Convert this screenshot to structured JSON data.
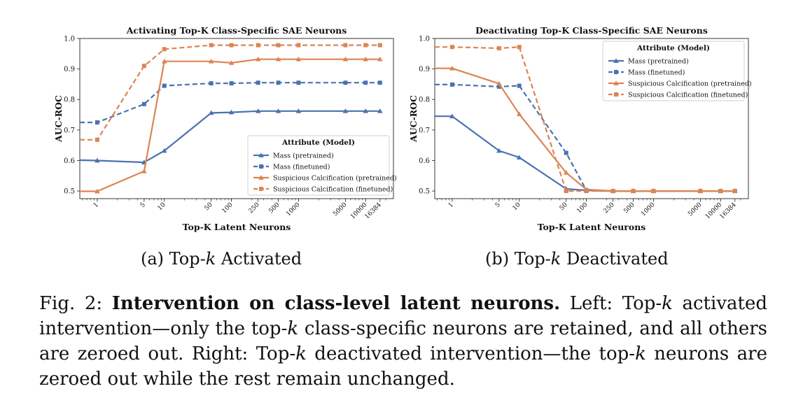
{
  "colors": {
    "mass": "#4a72b0",
    "calc": "#dd8452"
  },
  "legend": {
    "title": "Attribute (Model)",
    "entries": [
      {
        "label": "Mass (pretrained)",
        "color": "#4a72b0",
        "dash": false,
        "marker": "triangle"
      },
      {
        "label": "Mass (finetuned)",
        "color": "#4a72b0",
        "dash": true,
        "marker": "square"
      },
      {
        "label": "Suspicious Calcification (pretrained)",
        "color": "#dd8452",
        "dash": false,
        "marker": "triangle"
      },
      {
        "label": "Suspicious Calcification (finetuned)",
        "color": "#dd8452",
        "dash": true,
        "marker": "square"
      }
    ]
  },
  "chart_data": [
    {
      "type": "line",
      "title": "Activating Top-K Class-Specific SAE Neurons",
      "xlabel": "Top-K Latent Neurons",
      "ylabel": "AUC-ROC",
      "x_scale": "log",
      "xlim": [
        0.55,
        26000
      ],
      "ylim": [
        0.475,
        1.0
      ],
      "x": [
        1,
        5,
        10,
        50,
        100,
        250,
        500,
        1000,
        5000,
        10000,
        16384
      ],
      "x_tick_labels": [
        "1",
        "5",
        "10",
        "50",
        "100",
        "250",
        "500",
        "1000",
        "5000",
        "10000",
        "16384"
      ],
      "y_ticks": [
        0.5,
        0.6,
        0.7,
        0.8,
        0.9,
        1.0
      ],
      "y_tick_labels": [
        "0.5",
        "0.6",
        "0.7",
        "0.8",
        "0.9",
        "1.0"
      ],
      "legend_position": "lower right",
      "grid": false,
      "series": [
        {
          "name": "Mass (pretrained)",
          "points": [
            [
              0.55,
              0.601
            ],
            [
              1,
              0.6
            ],
            [
              5,
              0.594
            ],
            [
              10,
              0.632
            ],
            [
              50,
              0.756
            ],
            [
              100,
              0.758
            ],
            [
              250,
              0.762
            ],
            [
              500,
              0.762
            ],
            [
              1000,
              0.762
            ],
            [
              5000,
              0.762
            ],
            [
              10000,
              0.762
            ],
            [
              16384,
              0.762
            ]
          ]
        },
        {
          "name": "Mass (finetuned)",
          "points": [
            [
              0.55,
              0.725
            ],
            [
              1,
              0.725
            ],
            [
              5,
              0.785
            ],
            [
              10,
              0.845
            ],
            [
              50,
              0.853
            ],
            [
              100,
              0.853
            ],
            [
              250,
              0.855
            ],
            [
              500,
              0.855
            ],
            [
              1000,
              0.855
            ],
            [
              5000,
              0.855
            ],
            [
              10000,
              0.855
            ],
            [
              16384,
              0.855
            ]
          ]
        },
        {
          "name": "Suspicious Calcification (pretrained)",
          "points": [
            [
              0.55,
              0.499
            ],
            [
              1,
              0.499
            ],
            [
              5,
              0.565
            ],
            [
              10,
              0.925
            ],
            [
              50,
              0.925
            ],
            [
              100,
              0.92
            ],
            [
              250,
              0.932
            ],
            [
              500,
              0.932
            ],
            [
              1000,
              0.932
            ],
            [
              5000,
              0.932
            ],
            [
              10000,
              0.932
            ],
            [
              16384,
              0.932
            ]
          ]
        },
        {
          "name": "Suspicious Calcification (finetuned)",
          "points": [
            [
              0.55,
              0.668
            ],
            [
              1,
              0.668
            ],
            [
              5,
              0.91
            ],
            [
              10,
              0.965
            ],
            [
              50,
              0.978
            ],
            [
              100,
              0.978
            ],
            [
              250,
              0.978
            ],
            [
              500,
              0.978
            ],
            [
              1000,
              0.978
            ],
            [
              5000,
              0.978
            ],
            [
              10000,
              0.978
            ],
            [
              16384,
              0.978
            ]
          ]
        }
      ]
    },
    {
      "type": "line",
      "title": "Deactivating Top-K Class-Specific SAE Neurons",
      "xlabel": "Top-K Latent Neurons",
      "ylabel": "AUC-ROC",
      "x_scale": "log",
      "xlim": [
        0.55,
        26000
      ],
      "ylim": [
        0.475,
        1.0
      ],
      "x": [
        1,
        5,
        10,
        50,
        100,
        250,
        500,
        1000,
        5000,
        10000,
        16384
      ],
      "x_tick_labels": [
        "1",
        "5",
        "10",
        "50",
        "100",
        "250",
        "500",
        "1000",
        "5000",
        "10000",
        "16384"
      ],
      "y_ticks": [
        0.5,
        0.6,
        0.7,
        0.8,
        0.9,
        1.0
      ],
      "y_tick_labels": [
        "0.5",
        "0.6",
        "0.7",
        "0.8",
        "0.9",
        "1.0"
      ],
      "legend_position": "upper right",
      "grid": false,
      "series": [
        {
          "name": "Mass (pretrained)",
          "points": [
            [
              0.55,
              0.745
            ],
            [
              1,
              0.745
            ],
            [
              5,
              0.632
            ],
            [
              10,
              0.61
            ],
            [
              50,
              0.507
            ],
            [
              100,
              0.502
            ],
            [
              250,
              0.5
            ],
            [
              500,
              0.5
            ],
            [
              1000,
              0.5
            ],
            [
              5000,
              0.5
            ],
            [
              10000,
              0.5
            ],
            [
              16384,
              0.5
            ]
          ]
        },
        {
          "name": "Mass (finetuned)",
          "points": [
            [
              0.55,
              0.849
            ],
            [
              1,
              0.849
            ],
            [
              5,
              0.842
            ],
            [
              10,
              0.845
            ],
            [
              50,
              0.625
            ],
            [
              100,
              0.502
            ],
            [
              250,
              0.5
            ],
            [
              500,
              0.5
            ],
            [
              1000,
              0.5
            ],
            [
              5000,
              0.5
            ],
            [
              10000,
              0.5
            ],
            [
              16384,
              0.5
            ]
          ]
        },
        {
          "name": "Suspicious Calcification (pretrained)",
          "points": [
            [
              0.55,
              0.902
            ],
            [
              1,
              0.902
            ],
            [
              5,
              0.852
            ],
            [
              10,
              0.752
            ],
            [
              50,
              0.56
            ],
            [
              100,
              0.505
            ],
            [
              250,
              0.5
            ],
            [
              500,
              0.5
            ],
            [
              1000,
              0.5
            ],
            [
              5000,
              0.5
            ],
            [
              10000,
              0.5
            ],
            [
              16384,
              0.5
            ]
          ]
        },
        {
          "name": "Suspicious Calcification (finetuned)",
          "points": [
            [
              0.55,
              0.972
            ],
            [
              1,
              0.972
            ],
            [
              5,
              0.968
            ],
            [
              10,
              0.972
            ],
            [
              50,
              0.5
            ],
            [
              100,
              0.5
            ],
            [
              250,
              0.5
            ],
            [
              500,
              0.5
            ],
            [
              1000,
              0.5
            ],
            [
              5000,
              0.5
            ],
            [
              10000,
              0.5
            ],
            [
              16384,
              0.5
            ]
          ]
        }
      ]
    }
  ],
  "subcaptions": [
    {
      "prefix": "(a) Top-",
      "k": "k",
      "suffix": " Activated"
    },
    {
      "prefix": "(b) Top-",
      "k": "k",
      "suffix": " Deactivated"
    }
  ],
  "caption": {
    "fig": "Fig. 2:",
    "bold": "Intervention on class-level latent neurons.",
    "t1": " Left: Top-",
    "k1": "k",
    "t2": " activated intervention—only the top-",
    "k2": "k",
    "t3": " class-specific neurons are retained, and all others are zeroed out. Right: Top-",
    "k3": "k",
    "t4": " deactivated intervention—the top-",
    "k4": "k",
    "t5": " neurons are zeroed out while the rest remain unchanged."
  }
}
